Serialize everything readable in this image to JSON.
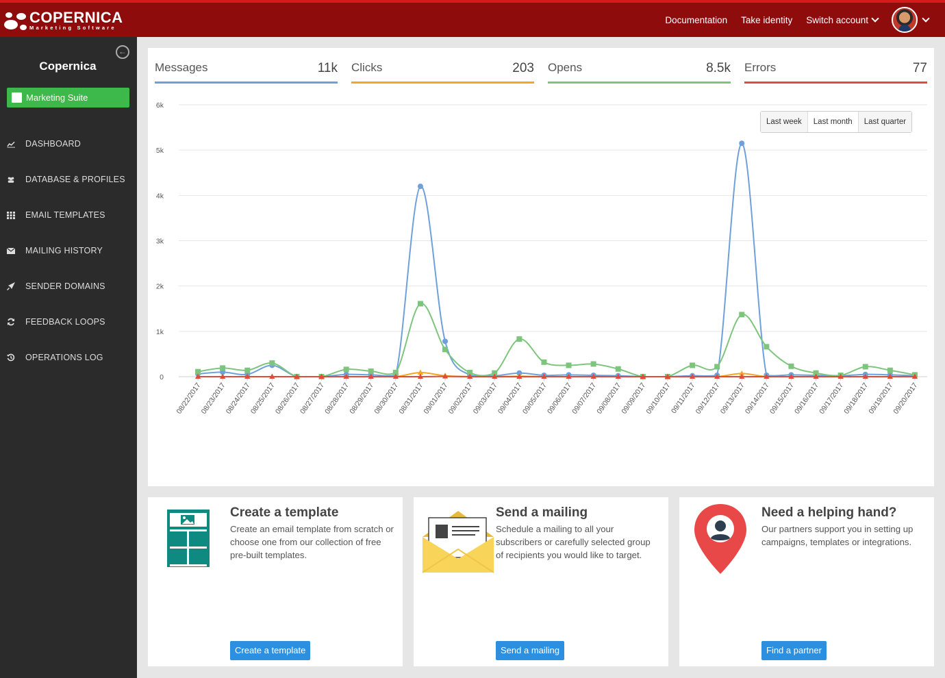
{
  "brand": {
    "name": "COPERNICA",
    "tagline": "Marketing Software"
  },
  "topnav": {
    "documentation": "Documentation",
    "take_identity": "Take identity",
    "switch_account": "Switch account"
  },
  "sidebar": {
    "title": "Copernica",
    "suite_label": "Marketing Suite",
    "items": [
      {
        "label": "DASHBOARD",
        "icon": "chart-line-icon"
      },
      {
        "label": "DATABASE & PROFILES",
        "icon": "users-icon"
      },
      {
        "label": "EMAIL TEMPLATES",
        "icon": "grid-icon"
      },
      {
        "label": "MAILING HISTORY",
        "icon": "envelope-icon"
      },
      {
        "label": "SENDER DOMAINS",
        "icon": "rocket-icon"
      },
      {
        "label": "FEEDBACK LOOPS",
        "icon": "refresh-icon"
      },
      {
        "label": "OPERATIONS LOG",
        "icon": "history-icon"
      }
    ]
  },
  "stats": [
    {
      "label": "Messages",
      "value": "11k",
      "color": "#6fa0dc"
    },
    {
      "label": "Clicks",
      "value": "203",
      "color": "#f5a623"
    },
    {
      "label": "Opens",
      "value": "8.5k",
      "color": "#7dc57d"
    },
    {
      "label": "Errors",
      "value": "77",
      "color": "#e14b3b"
    }
  ],
  "range_buttons": [
    "Last week",
    "Last month",
    "Last quarter"
  ],
  "chart_data": {
    "type": "line",
    "ylim": [
      0,
      6000
    ],
    "yticks": [
      "0",
      "1k",
      "2k",
      "3k",
      "4k",
      "5k",
      "6k"
    ],
    "ytick_values": [
      0,
      1000,
      2000,
      3000,
      4000,
      5000,
      6000
    ],
    "grid": true,
    "legend": "none",
    "x": [
      "08/22/2017",
      "08/23/2017",
      "08/24/2017",
      "08/25/2017",
      "08/26/2017",
      "08/27/2017",
      "08/28/2017",
      "08/29/2017",
      "08/30/2017",
      "08/31/2017",
      "09/01/2017",
      "09/02/2017",
      "09/03/2017",
      "09/04/2017",
      "09/05/2017",
      "09/06/2017",
      "09/07/2017",
      "09/08/2017",
      "09/09/2017",
      "09/10/2017",
      "09/11/2017",
      "09/12/2017",
      "09/13/2017",
      "09/14/2017",
      "09/15/2017",
      "09/16/2017",
      "09/17/2017",
      "09/18/2017",
      "09/19/2017",
      "09/20/2017"
    ],
    "series": [
      {
        "name": "Messages",
        "color": "#6fa0dc",
        "marker": "circle",
        "values": [
          60,
          100,
          50,
          250,
          0,
          0,
          50,
          40,
          30,
          4200,
          780,
          30,
          20,
          80,
          30,
          40,
          30,
          20,
          0,
          0,
          20,
          30,
          5150,
          30,
          40,
          30,
          20,
          50,
          40,
          20
        ]
      },
      {
        "name": "Opens",
        "color": "#7dc57d",
        "marker": "square",
        "values": [
          110,
          190,
          140,
          300,
          0,
          0,
          160,
          120,
          90,
          1610,
          600,
          90,
          80,
          830,
          320,
          250,
          280,
          170,
          0,
          0,
          250,
          220,
          1370,
          660,
          230,
          80,
          30,
          220,
          140,
          40
        ]
      },
      {
        "name": "Clicks",
        "color": "#f5a623",
        "marker": "triangle",
        "values": [
          0,
          0,
          0,
          0,
          0,
          0,
          0,
          0,
          0,
          90,
          20,
          0,
          0,
          10,
          0,
          0,
          0,
          0,
          0,
          0,
          0,
          0,
          70,
          0,
          0,
          0,
          0,
          0,
          0,
          0
        ]
      },
      {
        "name": "Errors",
        "color": "#e14b3b",
        "marker": "triangle",
        "values": [
          0,
          0,
          0,
          0,
          0,
          0,
          0,
          0,
          0,
          0,
          5,
          0,
          0,
          0,
          0,
          0,
          0,
          0,
          0,
          0,
          0,
          0,
          0,
          0,
          0,
          0,
          0,
          0,
          0,
          0
        ]
      }
    ]
  },
  "cards": [
    {
      "title": "Create a template",
      "text": "Create an email template from scratch or choose one from our collection of free pre-built templates.",
      "button": "Create a template"
    },
    {
      "title": "Send a mailing",
      "text": "Schedule a mailing to all your subscribers or carefully selected group of recipients you would like to target.",
      "button": "Send a mailing"
    },
    {
      "title": "Need a helping hand?",
      "text": "Our partners support you in setting up campaigns, templates or integrations.",
      "button": "Find a partner"
    }
  ]
}
